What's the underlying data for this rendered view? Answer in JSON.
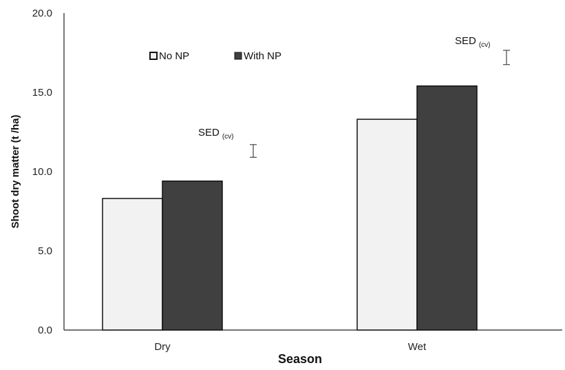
{
  "chart_data": {
    "type": "bar",
    "categories": [
      "Dry",
      "Wet"
    ],
    "series": [
      {
        "name": "No NP",
        "values": [
          8.3,
          13.3
        ],
        "color": "#f2f2f2"
      },
      {
        "name": "With NP",
        "values": [
          9.4,
          15.4
        ],
        "color": "#404040"
      }
    ],
    "xlabel": "Season",
    "ylabel": "Shoot dry matter (t /ha)",
    "ylim": [
      0,
      20
    ],
    "yticks": [
      "0.0",
      "5.0",
      "10.0",
      "15.0",
      "20.0"
    ],
    "grid": false,
    "legend_position": "top-left",
    "annotations": [
      {
        "text": "SED",
        "subscript": "(cv)",
        "category": "Dry",
        "center": 11.3,
        "half_height": 0.4
      },
      {
        "text": "SED",
        "subscript": "(cv)",
        "category": "Wet",
        "center": 17.2,
        "half_height": 0.45
      }
    ]
  }
}
